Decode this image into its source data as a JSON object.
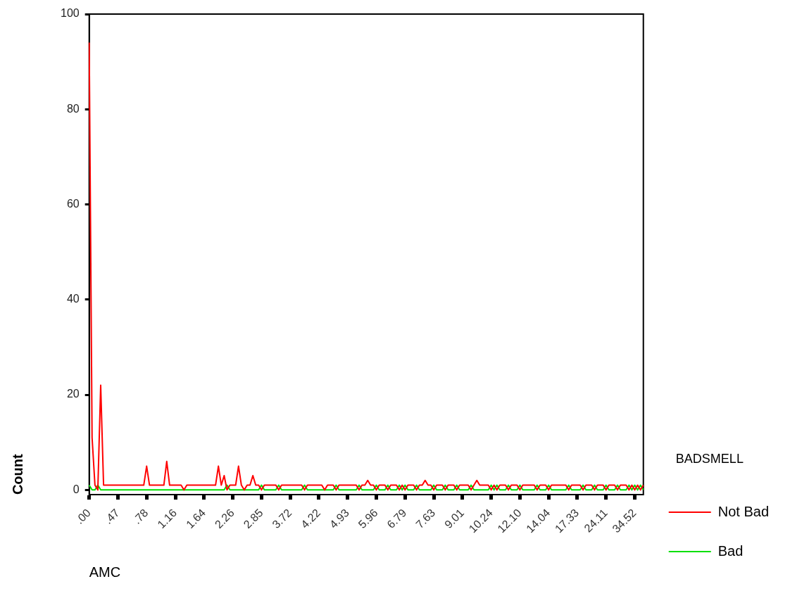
{
  "chart_data": {
    "type": "line",
    "xlabel": "AMC",
    "ylabel": "Count",
    "legend_title": "BADSMELL",
    "legend": "right",
    "grid": false,
    "marker": "none",
    "ylim": [
      -1,
      100
    ],
    "yticks": [
      0,
      20,
      40,
      60,
      80,
      100
    ],
    "categories": [
      ".00",
      null,
      null,
      null,
      null,
      null,
      null,
      null,
      null,
      null,
      ".47",
      null,
      null,
      null,
      null,
      null,
      null,
      null,
      null,
      null,
      ".78",
      null,
      null,
      null,
      null,
      null,
      null,
      null,
      null,
      null,
      "1.16",
      null,
      null,
      null,
      null,
      null,
      null,
      null,
      null,
      null,
      "1.64",
      null,
      null,
      null,
      null,
      null,
      null,
      null,
      null,
      null,
      "2.26",
      null,
      null,
      null,
      null,
      null,
      null,
      null,
      null,
      null,
      "2.85",
      null,
      null,
      null,
      null,
      null,
      null,
      null,
      null,
      null,
      "3.72",
      null,
      null,
      null,
      null,
      null,
      null,
      null,
      null,
      null,
      "4.22",
      null,
      null,
      null,
      null,
      null,
      null,
      null,
      null,
      null,
      "4.93",
      null,
      null,
      null,
      null,
      null,
      null,
      null,
      null,
      null,
      "5.96",
      null,
      null,
      null,
      null,
      null,
      null,
      null,
      null,
      null,
      "6.79",
      null,
      null,
      null,
      null,
      null,
      null,
      null,
      null,
      null,
      "7.63",
      null,
      null,
      null,
      null,
      null,
      null,
      null,
      null,
      null,
      "9.01",
      null,
      null,
      null,
      null,
      null,
      null,
      null,
      null,
      null,
      "10.24",
      null,
      null,
      null,
      null,
      null,
      null,
      null,
      null,
      null,
      "12.10",
      null,
      null,
      null,
      null,
      null,
      null,
      null,
      null,
      null,
      "14.04",
      null,
      null,
      null,
      null,
      null,
      null,
      null,
      null,
      null,
      "17.33",
      null,
      null,
      null,
      null,
      null,
      null,
      null,
      null,
      null,
      "24.11",
      null,
      null,
      null,
      null,
      null,
      null,
      null,
      null,
      null,
      "34.52",
      null,
      null,
      null
    ],
    "series": [
      {
        "name": "Not Bad",
        "color": "#ff0000",
        "values": [
          94,
          11,
          1,
          0,
          22,
          1,
          1,
          1,
          1,
          1,
          1,
          1,
          1,
          1,
          1,
          1,
          1,
          1,
          1,
          1,
          5,
          1,
          1,
          1,
          1,
          1,
          1,
          6,
          1,
          1,
          1,
          1,
          1,
          0,
          1,
          1,
          1,
          1,
          1,
          1,
          1,
          1,
          1,
          1,
          1,
          5,
          1,
          3,
          0,
          1,
          1,
          1,
          5,
          1,
          0,
          1,
          1,
          3,
          1,
          1,
          0,
          1,
          1,
          1,
          1,
          1,
          0,
          1,
          1,
          1,
          1,
          1,
          1,
          1,
          1,
          0,
          1,
          1,
          1,
          1,
          1,
          1,
          0,
          1,
          1,
          1,
          0,
          1,
          1,
          1,
          1,
          1,
          1,
          1,
          0,
          1,
          1,
          2,
          1,
          1,
          0,
          1,
          1,
          1,
          0,
          1,
          1,
          1,
          0,
          1,
          0,
          1,
          1,
          1,
          0,
          1,
          1,
          2,
          1,
          1,
          0,
          1,
          1,
          1,
          0,
          1,
          1,
          1,
          0,
          1,
          1,
          1,
          1,
          0,
          1,
          2,
          1,
          1,
          1,
          1,
          0,
          1,
          0,
          1,
          1,
          1,
          0,
          1,
          1,
          1,
          0,
          1,
          1,
          1,
          1,
          1,
          0,
          1,
          1,
          1,
          0,
          1,
          1,
          1,
          1,
          1,
          1,
          0,
          1,
          1,
          1,
          1,
          0,
          1,
          1,
          1,
          0,
          1,
          1,
          1,
          0,
          1,
          1,
          1,
          0,
          1,
          1,
          1,
          0,
          1,
          0,
          1,
          0,
          1
        ]
      },
      {
        "name": "Bad",
        "color": "#00e000",
        "values": [
          1,
          0,
          0,
          1,
          0,
          0,
          0,
          0,
          0,
          0,
          0,
          0,
          0,
          0,
          0,
          0,
          0,
          0,
          0,
          0,
          0,
          0,
          0,
          0,
          0,
          0,
          0,
          0,
          0,
          0,
          0,
          0,
          0,
          0,
          0,
          0,
          0,
          0,
          0,
          0,
          0,
          0,
          0,
          0,
          0,
          0,
          0,
          0,
          1,
          0,
          0,
          0,
          0,
          0,
          0,
          0,
          0,
          0,
          0,
          0,
          1,
          0,
          0,
          0,
          0,
          0,
          1,
          0,
          0,
          0,
          0,
          0,
          0,
          0,
          0,
          1,
          0,
          0,
          0,
          0,
          0,
          0,
          0,
          0,
          0,
          0,
          1,
          0,
          0,
          0,
          0,
          0,
          0,
          0,
          1,
          0,
          0,
          0,
          0,
          0,
          1,
          0,
          0,
          0,
          1,
          0,
          0,
          0,
          1,
          0,
          1,
          0,
          0,
          0,
          1,
          0,
          0,
          0,
          0,
          0,
          1,
          0,
          0,
          0,
          1,
          0,
          0,
          0,
          1,
          0,
          0,
          0,
          0,
          1,
          0,
          0,
          0,
          0,
          0,
          0,
          1,
          0,
          1,
          0,
          0,
          0,
          1,
          0,
          0,
          0,
          1,
          0,
          0,
          0,
          0,
          0,
          1,
          0,
          0,
          0,
          1,
          0,
          0,
          0,
          0,
          0,
          0,
          1,
          0,
          0,
          0,
          0,
          1,
          0,
          0,
          0,
          1,
          0,
          0,
          0,
          1,
          0,
          0,
          0,
          1,
          0,
          0,
          0,
          1,
          0,
          1,
          0,
          1,
          0
        ]
      }
    ]
  }
}
